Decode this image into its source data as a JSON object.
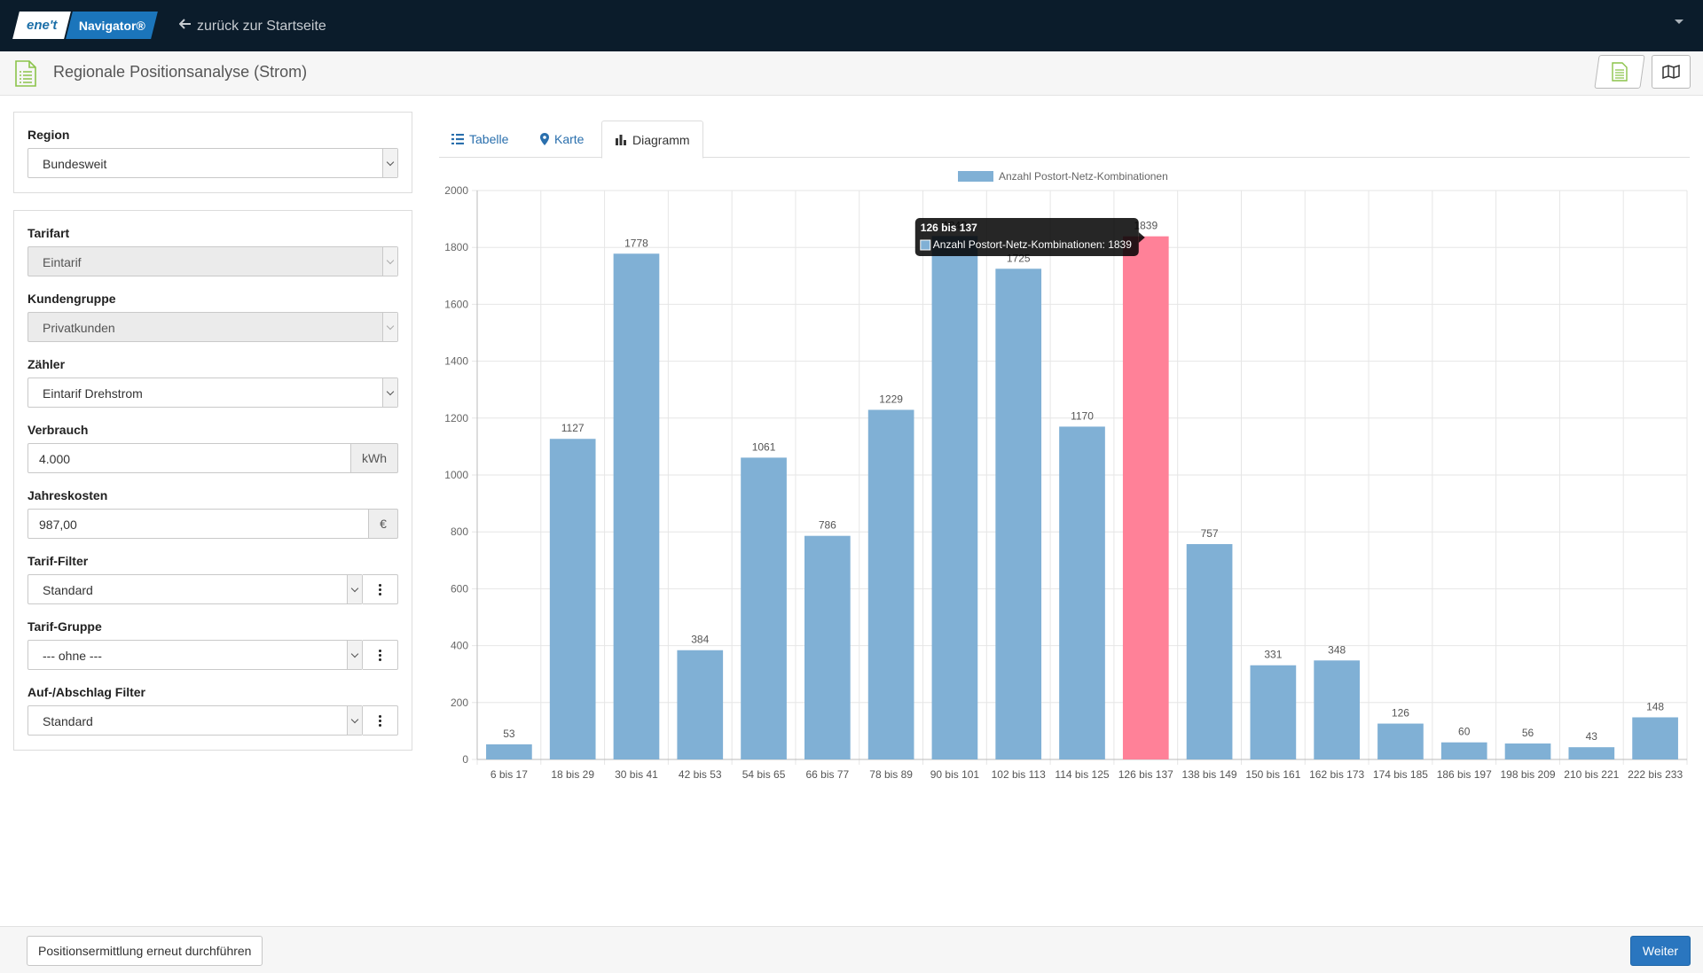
{
  "topbar": {
    "logo_left": "ene't",
    "logo_right": "Navigator®",
    "back_link": "zurück zur Startseite"
  },
  "header": {
    "title": "Regionale Positionsanalyse (Strom)"
  },
  "filters": {
    "region_label": "Region",
    "region_value": "Bundesweit",
    "tarifart_label": "Tarifart",
    "tarifart_value": "Eintarif",
    "kundengruppe_label": "Kundengruppe",
    "kundengruppe_value": "Privatkunden",
    "zaehler_label": "Zähler",
    "zaehler_value": "Eintarif Drehstrom",
    "verbrauch_label": "Verbrauch",
    "verbrauch_value": "4.000",
    "verbrauch_unit": "kWh",
    "jahreskosten_label": "Jahreskosten",
    "jahreskosten_value": "987,00",
    "jahreskosten_unit": "€",
    "tariffilter_label": "Tarif-Filter",
    "tariffilter_value": "Standard",
    "tarifgruppe_label": "Tarif-Gruppe",
    "tarifgruppe_value": "--- ohne ---",
    "aufabschlag_label": "Auf-/Abschlag Filter",
    "aufabschlag_value": "Standard"
  },
  "tabs": [
    {
      "label": "Tabelle",
      "icon": "list-icon"
    },
    {
      "label": "Karte",
      "icon": "map-marker-icon"
    },
    {
      "label": "Diagramm",
      "icon": "bar-chart-icon",
      "active": true
    }
  ],
  "tooltip": {
    "title": "126 bis 137",
    "text": "Anzahl Postort-Netz-Kombinationen: 1839"
  },
  "chart_data": {
    "type": "bar",
    "categories": [
      "6 bis 17",
      "18 bis 29",
      "30 bis 41",
      "42 bis 53",
      "54 bis 65",
      "66 bis 77",
      "78 bis 89",
      "90 bis 101",
      "102 bis 113",
      "114 bis 125",
      "126 bis 137",
      "138 bis 149",
      "150 bis 161",
      "162 bis 173",
      "174 bis 185",
      "186 bis 197",
      "198 bis 209",
      "210 bis 221",
      "222 bis 233"
    ],
    "series": [
      {
        "name": "Anzahl Postort-Netz-Kombinationen",
        "values": [
          53,
          1127,
          1778,
          384,
          1061,
          786,
          1229,
          1840,
          1725,
          1170,
          1839,
          757,
          331,
          348,
          126,
          60,
          56,
          43,
          148
        ]
      }
    ],
    "ylim": [
      0,
      2000
    ],
    "yticks": [
      0,
      200,
      400,
      600,
      800,
      1000,
      1200,
      1400,
      1600,
      1800,
      2000
    ],
    "highlight_index": 10,
    "colors": {
      "bar": "#80b0d5",
      "highlight": "#ff8198"
    },
    "legend": "top-center",
    "grid": true
  },
  "footer": {
    "rerun_label": "Positionsermittlung erneut durchführen",
    "next_label": "Weiter"
  }
}
